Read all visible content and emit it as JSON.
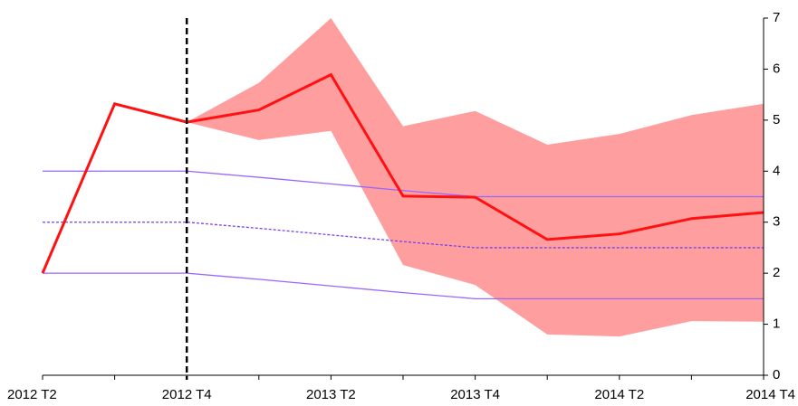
{
  "chart_data": {
    "type": "line",
    "categories": [
      "2012 T2",
      null,
      "2012 T4",
      null,
      "2013 T2",
      null,
      "2013 T4",
      null,
      "2014 T2",
      null,
      "2014 T4"
    ],
    "band": {
      "color": "#ff9e9e",
      "upper": [
        null,
        null,
        4.96,
        5.73,
        7.0,
        4.88,
        5.18,
        4.52,
        4.73,
        5.1,
        5.32
      ],
      "lower": [
        null,
        null,
        4.96,
        4.61,
        4.79,
        2.16,
        1.77,
        0.8,
        0.76,
        1.06,
        1.05
      ]
    },
    "series": [
      {
        "color": "#9966ff",
        "dash": false,
        "values": [
          4,
          4,
          4,
          3.88,
          3.75,
          3.62,
          3.5,
          3.5,
          3.5,
          3.5,
          3.5
        ]
      },
      {
        "color": "#7744ee",
        "dash": true,
        "values": [
          3,
          3,
          3,
          2.88,
          2.75,
          2.62,
          2.5,
          2.5,
          2.5,
          2.5,
          2.5
        ]
      },
      {
        "color": "#9966ff",
        "dash": false,
        "values": [
          2,
          2,
          2,
          1.88,
          1.75,
          1.62,
          1.5,
          1.5,
          1.5,
          1.5,
          1.5
        ]
      },
      {
        "color": "#ff1111",
        "dash": false,
        "values": [
          2.0,
          5.32,
          4.96,
          5.2,
          5.89,
          3.51,
          3.49,
          2.66,
          2.77,
          3.07,
          3.19
        ]
      }
    ],
    "ylim": [
      0,
      7
    ],
    "yticks": [
      0,
      1,
      2,
      3,
      4,
      5,
      6,
      7
    ]
  }
}
